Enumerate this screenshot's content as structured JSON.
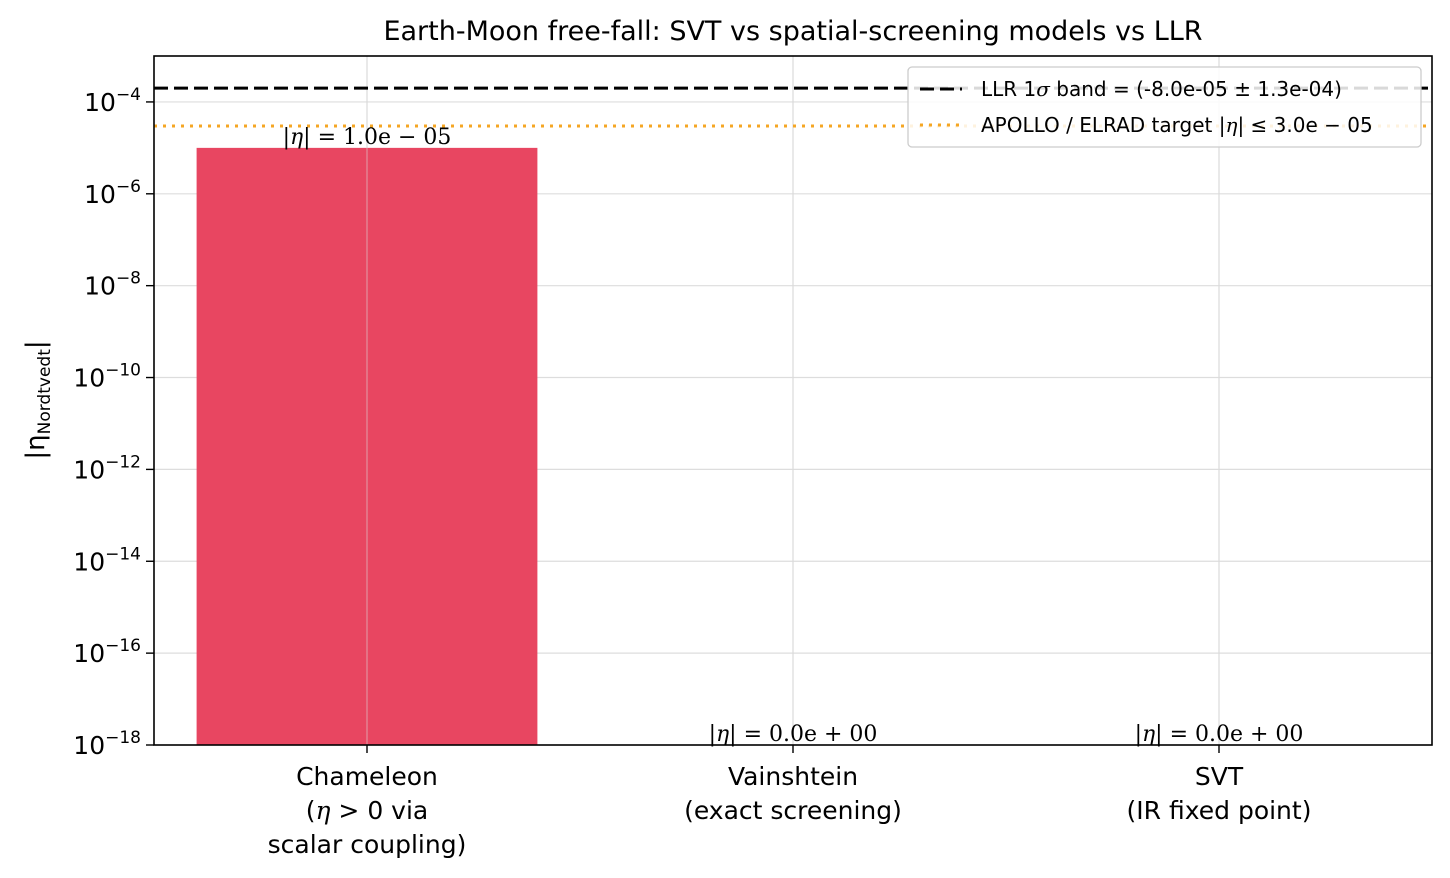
{
  "chart_data": {
    "type": "bar",
    "title": "Earth-Moon free-fall: SVT vs spatial-screening models vs LLR",
    "ylabel": "|η",
    "ylabel_sub": "Nordtvedt",
    "ylabel_close": "|",
    "yscale": "log",
    "ylim": [
      1e-18,
      0.001
    ],
    "yticks": [
      {
        "exp": "-18",
        "value": 1e-18
      },
      {
        "exp": "-16",
        "value": 1e-16
      },
      {
        "exp": "-14",
        "value": 1e-14
      },
      {
        "exp": "-12",
        "value": 1e-12
      },
      {
        "exp": "-10",
        "value": 1e-10
      },
      {
        "exp": "-8",
        "value": 1e-08
      },
      {
        "exp": "-6",
        "value": 1e-06
      },
      {
        "exp": "-4",
        "value": 0.0001
      }
    ],
    "tick_base": "10",
    "tick_minus": "−",
    "categories": [
      {
        "lines": [
          "Chameleon",
          "(η > 0 via",
          "scalar coupling)"
        ]
      },
      {
        "lines": [
          "Vainshtein",
          "(exact screening)"
        ]
      },
      {
        "lines": [
          "SVT",
          "(IR fixed point)"
        ]
      }
    ],
    "values": [
      1e-05,
      0,
      0
    ],
    "bar_labels": [
      "|η| = 1.0e − 05",
      "|η| = 0.0e + 00",
      "|η| = 0.0e + 00"
    ],
    "bar_color": "#e84661",
    "reference_lines": [
      {
        "value": 0.0002,
        "style": "dashed",
        "color": "#000000",
        "label": "LLR 1σ band = (-8.0e-05 ± 1.3e-04)"
      },
      {
        "value": 3e-05,
        "style": "dotted",
        "color": "#f5a623",
        "label": "APOLLO / ELRAD target |η| ≤ 3.0e − 05"
      }
    ],
    "grid": true,
    "legend_position": "top-right"
  }
}
